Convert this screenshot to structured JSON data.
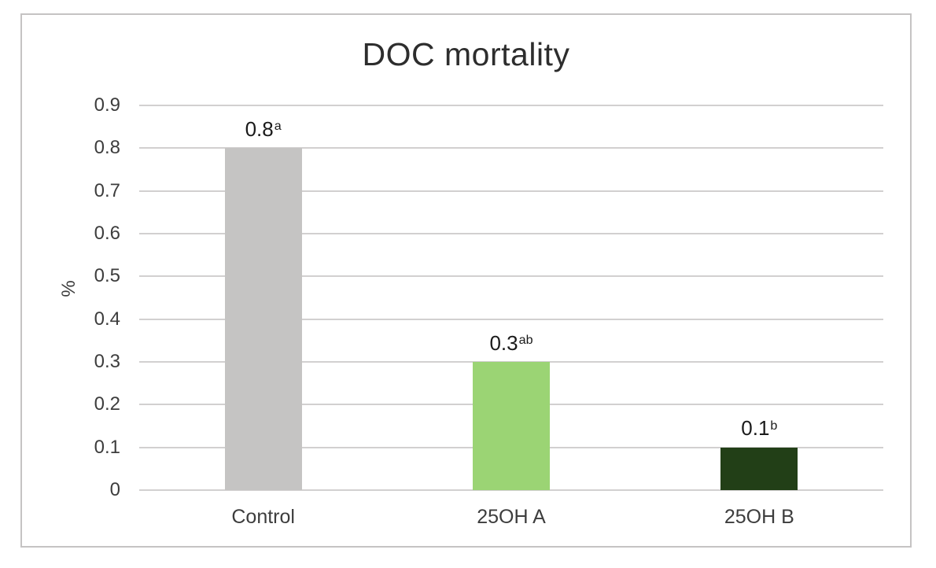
{
  "figure": {
    "background_color": "#ffffff",
    "frame_border_color": "#c5c3c3"
  },
  "chart_data": {
    "type": "bar",
    "title": "DOC mortality",
    "xlabel": "",
    "ylabel": "%",
    "categories": [
      "Control",
      "25OH A",
      "25OH B"
    ],
    "values": [
      0.8,
      0.3,
      0.1
    ],
    "value_labels": [
      {
        "text": "0.8",
        "superscript": "a"
      },
      {
        "text": "0.3",
        "superscript": "ab"
      },
      {
        "text": "0.1",
        "superscript": "b"
      }
    ],
    "bar_colors": [
      "#c5c4c3",
      "#9bd474",
      "#223f17"
    ],
    "ylim": [
      0,
      0.9
    ],
    "ytick_step": 0.1,
    "yticks": [
      "0.9",
      "0.8",
      "0.7",
      "0.6",
      "0.5",
      "0.4",
      "0.3",
      "0.2",
      "0.1",
      "0"
    ],
    "grid": true,
    "gridline_color": "#d2d0d0",
    "legend": "none",
    "text_color": "#3d3d3d",
    "title_color": "#2d2d2d"
  }
}
